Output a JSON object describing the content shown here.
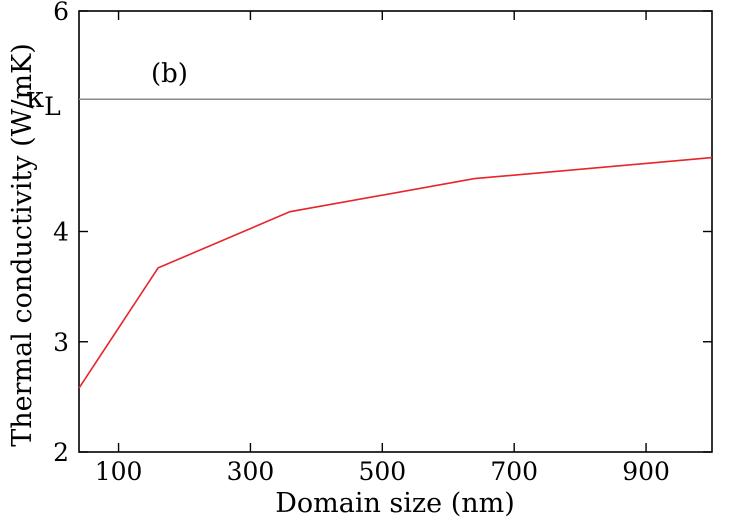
{
  "chart_data": {
    "type": "line",
    "title": "",
    "xlabel": "Domain size (nm)",
    "ylabel": "Thermal conductivity (W/mK)",
    "xlim": [
      40,
      1000
    ],
    "ylim": [
      2,
      6
    ],
    "xticks": [
      100,
      300,
      500,
      700,
      900
    ],
    "yticks": [
      2,
      3,
      4,
      6
    ],
    "grid": false,
    "legend": "none",
    "series": [
      {
        "color": "#e8242b",
        "x": [
          40,
          160,
          360,
          640,
          1000
        ],
        "y": [
          2.58,
          3.67,
          4.18,
          4.48,
          4.67
        ]
      }
    ],
    "reference_line": {
      "y": 5.2,
      "label": "κ",
      "label_subscript": "L",
      "color": "#8a8a8a"
    },
    "panel_label": "(b)"
  }
}
